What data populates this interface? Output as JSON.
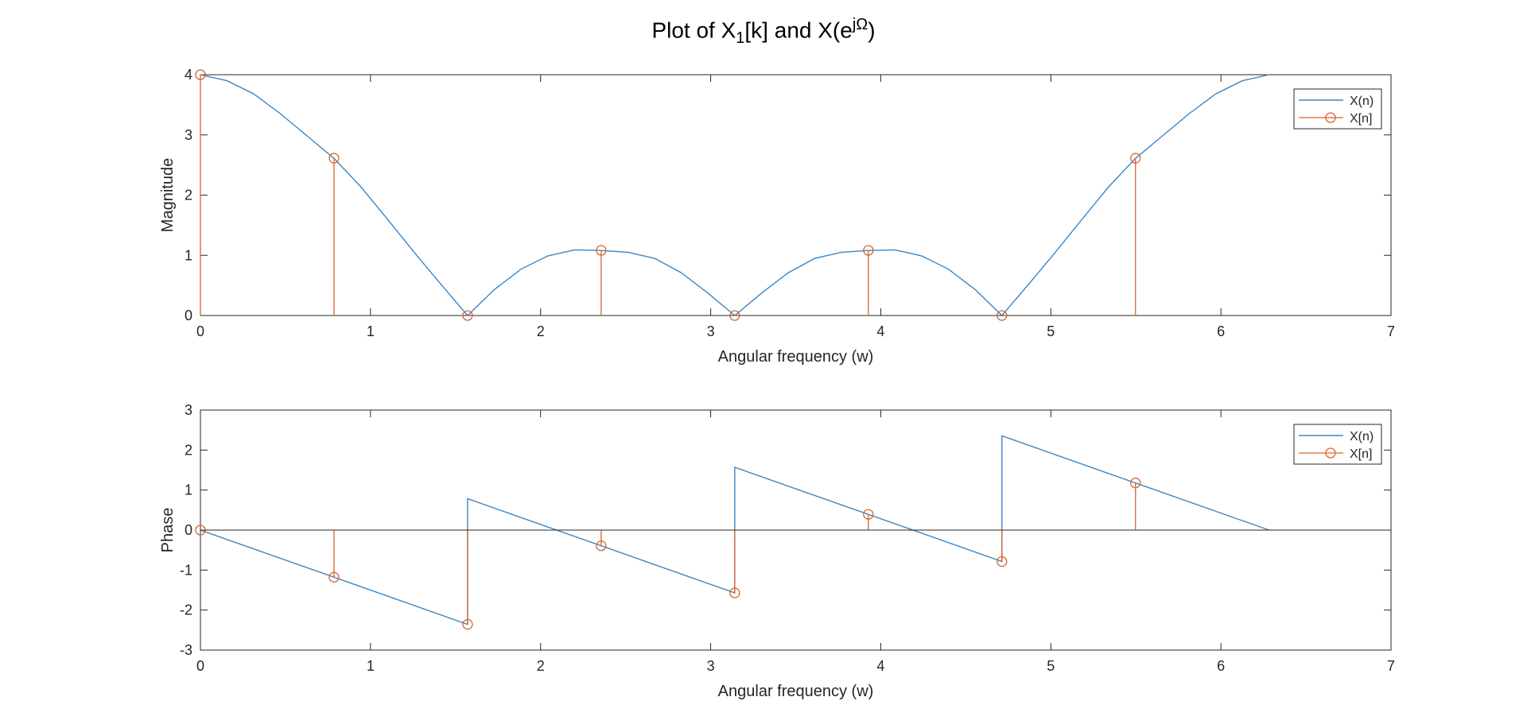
{
  "figure": {
    "title_main": "Plot of X",
    "title_sub": "1",
    "title_mid": "[k] and X(e",
    "title_sup": "jΩ",
    "title_end": ")"
  },
  "colors": {
    "line": "#3a86c6",
    "stem": "#d9632b",
    "axis": "#262626"
  },
  "chart_data": [
    {
      "type": "line",
      "id": "magnitude",
      "xlabel": "Angular frequency (w)",
      "ylabel": "Magnitude",
      "xlim": [
        0,
        7
      ],
      "ylim": [
        0,
        4
      ],
      "xticks": [
        0,
        1,
        2,
        3,
        4,
        5,
        6,
        7
      ],
      "yticks": [
        0,
        1,
        2,
        3,
        4
      ],
      "grid": false,
      "legend": {
        "position": "top-right",
        "entries": [
          "X(n)",
          "X[n]"
        ]
      },
      "series": [
        {
          "name": "X(n)",
          "type": "line",
          "x": [
            0,
            0.1571,
            0.3142,
            0.4712,
            0.6283,
            0.7854,
            0.9425,
            1.0996,
            1.2566,
            1.4137,
            1.5708,
            1.7279,
            1.885,
            2.042,
            2.1991,
            2.3562,
            2.5133,
            2.6704,
            2.8274,
            2.9845,
            3.1416,
            3.2987,
            3.4558,
            3.6128,
            3.7699,
            3.927,
            4.0841,
            4.2412,
            4.3982,
            4.5553,
            4.7124,
            4.8695,
            5.0265,
            5.1836,
            5.3407,
            5.4978,
            5.6549,
            5.8119,
            5.969,
            6.1261,
            6.2832
          ],
          "y": [
            4,
            3.9,
            3.68,
            3.35,
            2.98,
            2.61,
            2.14,
            1.6,
            1.05,
            0.52,
            0,
            0.43,
            0.77,
            0.99,
            1.09,
            1.08,
            1.05,
            0.95,
            0.71,
            0.37,
            0,
            0.37,
            0.71,
            0.95,
            1.05,
            1.08,
            1.09,
            0.99,
            0.77,
            0.43,
            0,
            0.52,
            1.05,
            1.6,
            2.14,
            2.61,
            2.98,
            3.35,
            3.68,
            3.9,
            4
          ]
        },
        {
          "name": "X[n]",
          "type": "stem",
          "x": [
            0,
            0.7854,
            1.5708,
            2.3562,
            3.1416,
            3.927,
            4.7124,
            5.4978
          ],
          "y": [
            4,
            2.6131,
            0,
            1.0824,
            0,
            1.0824,
            0,
            2.6131
          ]
        }
      ]
    },
    {
      "type": "line",
      "id": "phase",
      "xlabel": "Angular frequency (w)",
      "ylabel": "Phase",
      "xlim": [
        0,
        7
      ],
      "ylim": [
        -3,
        3
      ],
      "xticks": [
        0,
        1,
        2,
        3,
        4,
        5,
        6,
        7
      ],
      "yticks": [
        -3,
        -2,
        -1,
        0,
        1,
        2,
        3
      ],
      "grid": false,
      "legend": {
        "position": "top-right",
        "entries": [
          "X(n)",
          "X[n]"
        ]
      },
      "series": [
        {
          "name": "X(n)",
          "type": "line",
          "x": [
            0,
            1.5708,
            1.5708,
            3.1416,
            3.1416,
            4.7124,
            4.7124,
            6.2832
          ],
          "y": [
            0,
            -2.3562,
            0.7854,
            -1.5708,
            1.5708,
            -0.7854,
            2.3562,
            0
          ]
        },
        {
          "name": "X[n]",
          "type": "stem",
          "x": [
            0,
            0.7854,
            1.5708,
            2.3562,
            3.1416,
            3.927,
            4.7124,
            5.4978
          ],
          "y": [
            0,
            -1.1781,
            -2.3562,
            -0.3927,
            -1.5708,
            0.3927,
            -0.7854,
            1.1781
          ]
        }
      ]
    }
  ]
}
